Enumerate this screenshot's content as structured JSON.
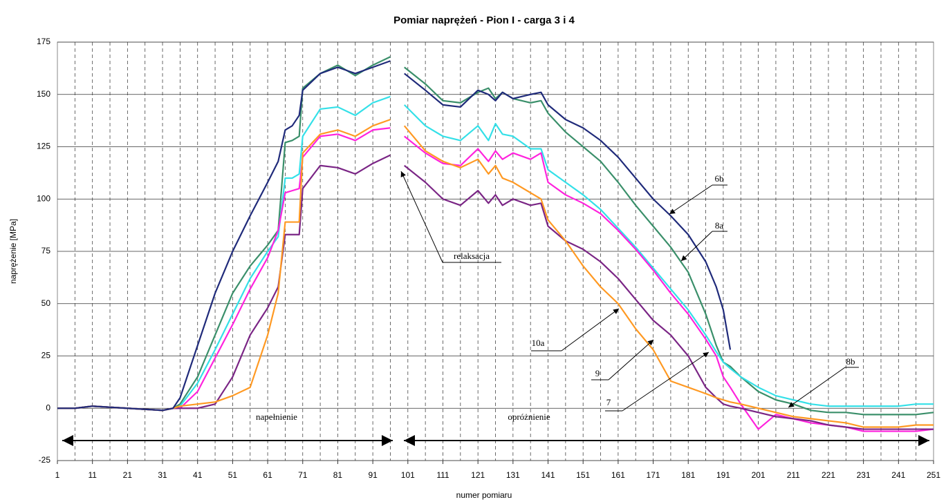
{
  "chart_data": {
    "type": "line",
    "title": "Pomiar naprężeń  -  Pion I  -  carga 3 i 4",
    "x_label": "numer pomiaru",
    "y_label": "naprężenie [MPa]",
    "xlim": [
      1,
      251
    ],
    "ylim": [
      -25,
      175
    ],
    "xticks": [
      1,
      11,
      21,
      31,
      41,
      51,
      61,
      71,
      81,
      91,
      101,
      111,
      121,
      131,
      141,
      151,
      161,
      171,
      181,
      191,
      201,
      211,
      221,
      231,
      241,
      251
    ],
    "xminor_ticks": [
      6,
      11,
      16,
      21,
      26,
      31,
      36,
      41,
      46,
      51,
      56,
      61,
      66,
      71,
      76,
      81,
      86,
      91,
      96,
      101,
      106,
      111,
      116,
      121,
      126,
      131,
      136,
      141,
      146,
      151,
      156,
      161,
      166,
      171,
      176,
      181,
      186,
      191,
      196,
      201,
      206,
      211,
      216,
      221,
      226,
      231,
      236,
      241,
      246
    ],
    "yticks": [
      -25,
      0,
      25,
      50,
      75,
      100,
      125,
      150,
      175
    ],
    "grid": true,
    "x": [
      1,
      6,
      11,
      16,
      21,
      26,
      31,
      34,
      36,
      41,
      46,
      51,
      56,
      61,
      64,
      66,
      68,
      70,
      71,
      76,
      81,
      86,
      91,
      96,
      98,
      100,
      106,
      111,
      116,
      121,
      124,
      126,
      128,
      131,
      136,
      139,
      141,
      146,
      151,
      156,
      161,
      166,
      171,
      176,
      181,
      186,
      189,
      191,
      193,
      196,
      201,
      206,
      211,
      216,
      221,
      226,
      231,
      236,
      241,
      246,
      251
    ],
    "series": [
      {
        "color": "#3a8f6a",
        "values": [
          0,
          0,
          1,
          0.5,
          0,
          -0.5,
          -1,
          0,
          2,
          15,
          35,
          55,
          68,
          78,
          85,
          127,
          128,
          130,
          153,
          160,
          164,
          159,
          164,
          168,
          null,
          163,
          155,
          147,
          146,
          151,
          153,
          148,
          151,
          148,
          146,
          147,
          141,
          132,
          125,
          118,
          108,
          97,
          87,
          77,
          65,
          45,
          30,
          22,
          20,
          15,
          8,
          4,
          2,
          -1,
          -2,
          -2,
          -3,
          -3,
          -3,
          -3,
          -2
        ]
      },
      {
        "color": "#33e0e8",
        "values": [
          0,
          0,
          1,
          0.5,
          0,
          -0.5,
          -1,
          0,
          1,
          12,
          28,
          45,
          62,
          75,
          82,
          110,
          110,
          112,
          130,
          143,
          144,
          140,
          146,
          149,
          null,
          145,
          135,
          130,
          128,
          135,
          128,
          136,
          131,
          130,
          124,
          124,
          114,
          108,
          102,
          95,
          86,
          77,
          67,
          57,
          47,
          35,
          27,
          22,
          19,
          15,
          10,
          6,
          4,
          2,
          1,
          1,
          1,
          1,
          1,
          2,
          2
        ]
      },
      {
        "color": "#ff22dd",
        "values": [
          0,
          0,
          1,
          0.5,
          0,
          -0.5,
          -1,
          0,
          0,
          8,
          24,
          40,
          57,
          72,
          85,
          103,
          104,
          105,
          120,
          130,
          131,
          128,
          133,
          134,
          null,
          130,
          122,
          117,
          116,
          124,
          118,
          123,
          119,
          122,
          119,
          122,
          108,
          102,
          98,
          93,
          85,
          76,
          66,
          55,
          45,
          33,
          25,
          15,
          10,
          2,
          -10,
          -3,
          -5,
          -7,
          -8,
          -9,
          -11,
          -11,
          -11,
          -11,
          -10
        ]
      },
      {
        "color": "#7a2585",
        "values": [
          0,
          0,
          1,
          0.5,
          0,
          -0.5,
          -1,
          0,
          0,
          0,
          2,
          15,
          35,
          48,
          58,
          83,
          83,
          83,
          105,
          116,
          115,
          112,
          117,
          121,
          null,
          116,
          108,
          100,
          97,
          104,
          98,
          102,
          97,
          100,
          97,
          98,
          87,
          80,
          76,
          70,
          62,
          52,
          42,
          35,
          25,
          10,
          5,
          2,
          1,
          0,
          -2,
          -4,
          -5,
          -6,
          -8,
          -9,
          -10,
          -10,
          -10,
          -10,
          -10
        ]
      },
      {
        "color": "#ff9922",
        "values": [
          0,
          0,
          1,
          0.5,
          0,
          -0.5,
          -1,
          0,
          1,
          2,
          3,
          6,
          10,
          35,
          55,
          89,
          89,
          89,
          122,
          131,
          133,
          130,
          135,
          138,
          null,
          135,
          123,
          118,
          115,
          119,
          112,
          116,
          110,
          108,
          103,
          100,
          90,
          80,
          68,
          58,
          50,
          38,
          28,
          13,
          10,
          7,
          5,
          4,
          3,
          2,
          0,
          -2,
          -4,
          -5,
          -6,
          -7,
          -9,
          -9,
          -9,
          -8,
          -8
        ]
      },
      {
        "color": "#1f2a7a",
        "values": [
          0,
          0,
          1,
          0.5,
          0,
          -0.5,
          -1,
          0,
          5,
          30,
          55,
          75,
          92,
          108,
          118,
          133,
          135,
          140,
          152,
          160,
          163,
          160,
          163,
          166,
          null,
          160,
          152,
          145,
          144,
          152,
          150,
          147,
          151,
          148,
          150,
          151,
          145,
          138,
          134,
          128,
          120,
          110,
          100,
          92,
          83,
          70,
          58,
          47,
          28,
          null,
          null,
          null,
          null,
          null,
          null,
          null,
          null,
          null,
          null,
          null,
          null
        ]
      }
    ],
    "annotations": [
      "6b",
      "8a",
      "10a",
      "9",
      "7",
      "8b",
      "relaksacja",
      "napełnienie",
      "opróżnienie"
    ]
  }
}
